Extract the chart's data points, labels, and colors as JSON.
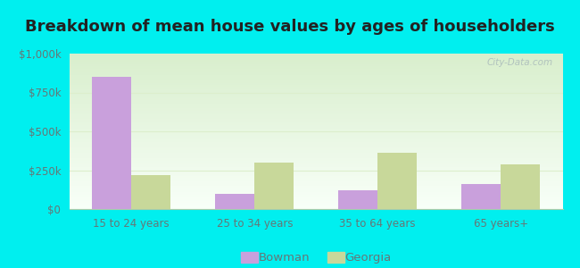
{
  "title": "Breakdown of mean house values by ages of householders",
  "categories": [
    "15 to 24 years",
    "25 to 34 years",
    "35 to 64 years",
    "65 years+"
  ],
  "bowman_values": [
    850000,
    100000,
    120000,
    160000
  ],
  "georgia_values": [
    220000,
    300000,
    360000,
    290000
  ],
  "bowman_color": "#c9a0dc",
  "georgia_color": "#c8d89a",
  "ylim": [
    0,
    1000000
  ],
  "yticks": [
    0,
    250000,
    500000,
    750000,
    1000000
  ],
  "ytick_labels": [
    "$0",
    "$250k",
    "$500k",
    "$750k",
    "$1,000k"
  ],
  "outer_bg_color": "#00efef",
  "plot_bg_color_top": "#d8eecc",
  "plot_bg_color_bottom": "#f8fff8",
  "bar_width": 0.32,
  "legend_labels": [
    "Bowman",
    "Georgia"
  ],
  "watermark": "City-Data.com",
  "title_fontsize": 13,
  "tick_fontsize": 8.5,
  "legend_fontsize": 9.5,
  "tick_color": "#667777",
  "grid_color": "#ddeecc",
  "spine_color": "#aaccaa"
}
